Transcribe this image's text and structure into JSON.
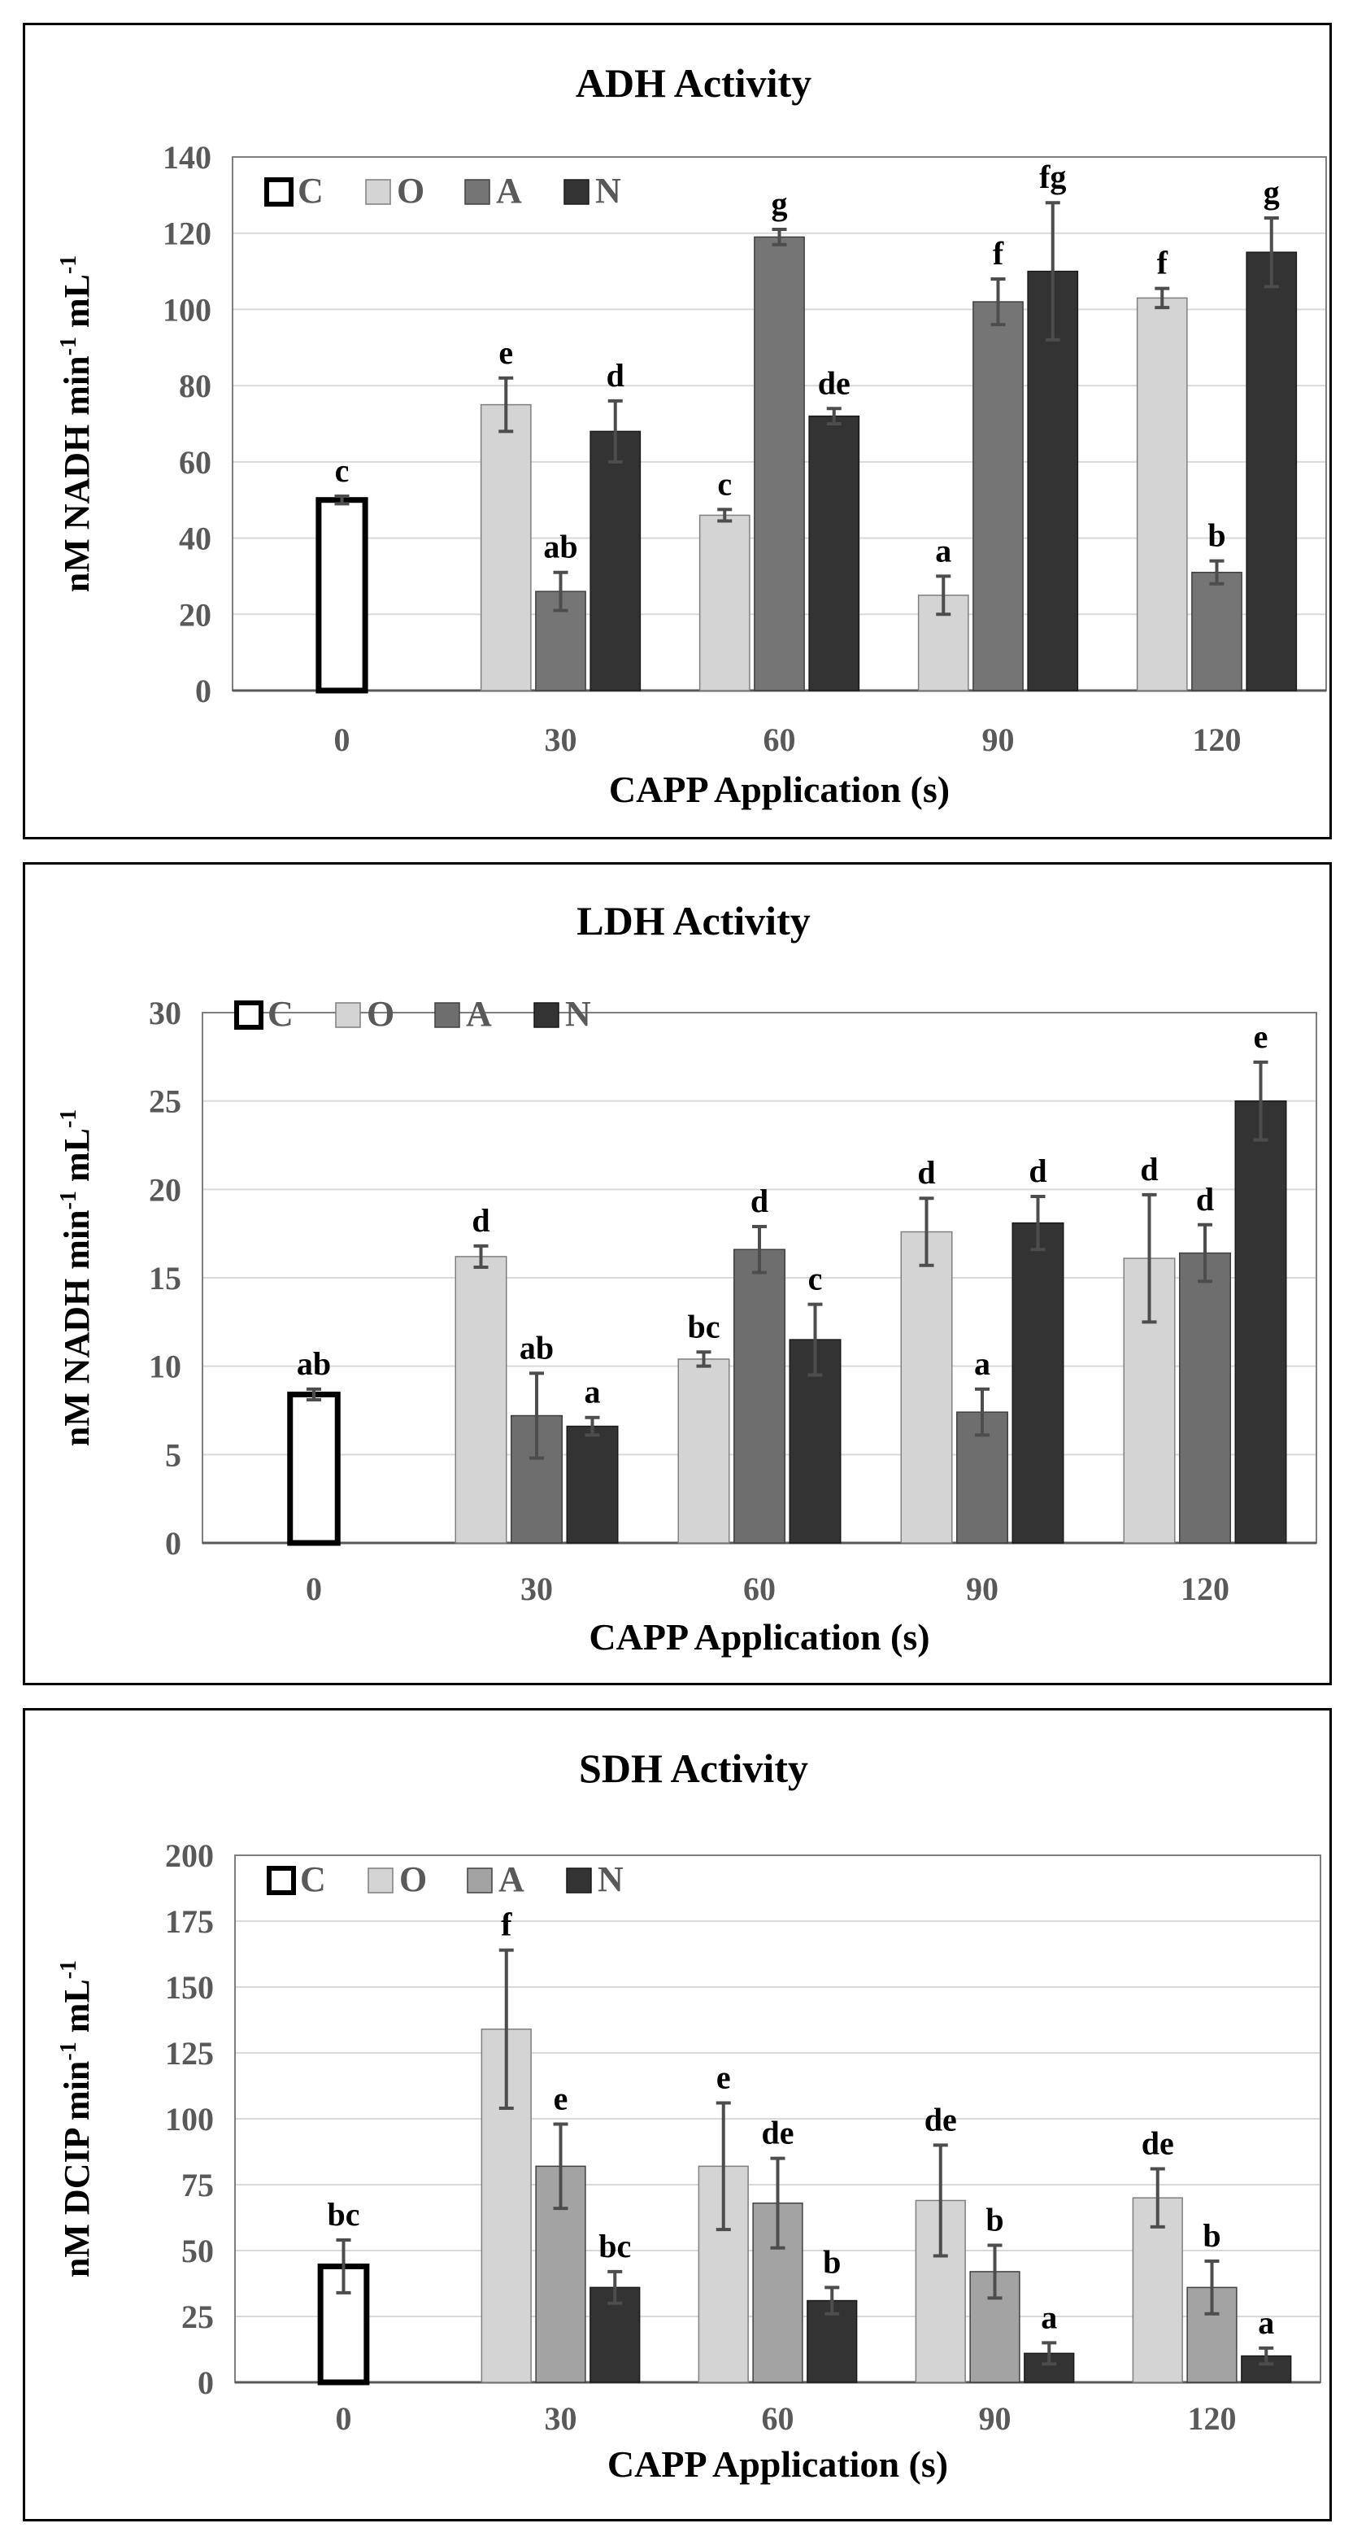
{
  "charts": [
    {
      "type": "bar",
      "title": "ADH Activity",
      "xlabel": "CAPP Application (s)",
      "ylabel_main": "nM NADH min",
      "ylabel_sup1": "-1",
      "ylabel_mid": " mL",
      "ylabel_sup2": "-1",
      "categories": [
        "0",
        "30",
        "60",
        "90",
        "120"
      ],
      "ylim": [
        0,
        140
      ],
      "yticks": [
        0,
        20,
        40,
        60,
        80,
        100,
        120,
        140
      ],
      "legend": [
        "C",
        "O",
        "A",
        "N"
      ],
      "series": [
        {
          "name": "C",
          "values": [
            50,
            null,
            null,
            null,
            null
          ],
          "errors": [
            1,
            null,
            null,
            null,
            null
          ],
          "letters": [
            "c",
            null,
            null,
            null,
            null
          ]
        },
        {
          "name": "O",
          "values": [
            null,
            75,
            46,
            25,
            103
          ],
          "errors": [
            null,
            7,
            1.5,
            5,
            2.5
          ],
          "letters": [
            null,
            "e",
            "c",
            "a",
            "f"
          ]
        },
        {
          "name": "A",
          "values": [
            null,
            26,
            119,
            102,
            31
          ],
          "errors": [
            null,
            5,
            2,
            6,
            3
          ],
          "letters": [
            null,
            "ab",
            "g",
            "f",
            "b"
          ]
        },
        {
          "name": "N",
          "values": [
            null,
            68,
            72,
            110,
            115
          ],
          "errors": [
            null,
            8,
            2,
            18,
            9
          ],
          "letters": [
            null,
            "d",
            "de",
            "fg",
            "g"
          ]
        }
      ]
    },
    {
      "type": "bar",
      "title": "LDH Activity",
      "xlabel": "CAPP Application (s)",
      "ylabel_main": "nM NADH min",
      "ylabel_sup1": "-1",
      "ylabel_mid": " mL",
      "ylabel_sup2": "-1",
      "categories": [
        "0",
        "30",
        "60",
        "90",
        "120"
      ],
      "ylim": [
        0,
        30
      ],
      "yticks": [
        0,
        5,
        10,
        15,
        20,
        25,
        30
      ],
      "legend": [
        "C",
        "O",
        "A",
        "N"
      ],
      "series": [
        {
          "name": "C",
          "values": [
            8.4,
            null,
            null,
            null,
            null
          ],
          "errors": [
            0.3,
            null,
            null,
            null,
            null
          ],
          "letters": [
            "ab",
            null,
            null,
            null,
            null
          ]
        },
        {
          "name": "O",
          "values": [
            null,
            16.2,
            10.4,
            17.6,
            16.1
          ],
          "errors": [
            null,
            0.6,
            0.4,
            1.9,
            3.6
          ],
          "letters": [
            null,
            "d",
            "bc",
            "d",
            "d"
          ]
        },
        {
          "name": "A",
          "values": [
            null,
            7.2,
            16.6,
            7.4,
            16.4
          ],
          "errors": [
            null,
            2.4,
            1.3,
            1.3,
            1.6
          ],
          "letters": [
            null,
            "ab",
            "d",
            "a",
            "d"
          ]
        },
        {
          "name": "N",
          "values": [
            null,
            6.6,
            11.5,
            18.1,
            25.0
          ],
          "errors": [
            null,
            0.5,
            2.0,
            1.5,
            2.2
          ],
          "letters": [
            null,
            "a",
            "c",
            "d",
            "e"
          ]
        }
      ]
    },
    {
      "type": "bar",
      "title": "SDH Activity",
      "xlabel": "CAPP Application (s)",
      "ylabel_main": "nM DCIP min",
      "ylabel_sup1": "-1",
      "ylabel_mid": " mL",
      "ylabel_sup2": "-1",
      "categories": [
        "0",
        "30",
        "60",
        "90",
        "120"
      ],
      "ylim": [
        0,
        200
      ],
      "yticks": [
        0,
        25,
        50,
        75,
        100,
        125,
        150,
        175,
        200
      ],
      "legend": [
        "C",
        "O",
        "A",
        "N"
      ],
      "series": [
        {
          "name": "C",
          "values": [
            44,
            null,
            null,
            null,
            null
          ],
          "errors": [
            10,
            null,
            null,
            null,
            null
          ],
          "letters": [
            "bc",
            null,
            null,
            null,
            null
          ]
        },
        {
          "name": "O",
          "values": [
            null,
            134,
            82,
            69,
            70
          ],
          "errors": [
            null,
            30,
            24,
            21,
            11
          ],
          "letters": [
            null,
            "f",
            "e",
            "de",
            "de"
          ]
        },
        {
          "name": "A",
          "values": [
            null,
            82,
            68,
            42,
            36
          ],
          "errors": [
            null,
            16,
            17,
            10,
            10
          ],
          "letters": [
            null,
            "e",
            "de",
            "b",
            "b"
          ]
        },
        {
          "name": "N",
          "values": [
            null,
            36,
            31,
            11,
            10
          ],
          "errors": [
            null,
            6,
            5,
            4,
            3
          ],
          "letters": [
            null,
            "bc",
            "b",
            "a",
            "a"
          ]
        }
      ]
    }
  ],
  "colors": {
    "C_fill": "#ffffff",
    "C_stroke": "#000000",
    "O_fill": "#d4d4d4",
    "A_fill_0": "#757575",
    "A_fill_1": "#6e6e6e",
    "A_fill_2": "#a3a3a3",
    "N_fill": "#333333",
    "grid": "#d9d9d9",
    "axis_text": "#595959",
    "error_bar": "#4d4d4d"
  }
}
